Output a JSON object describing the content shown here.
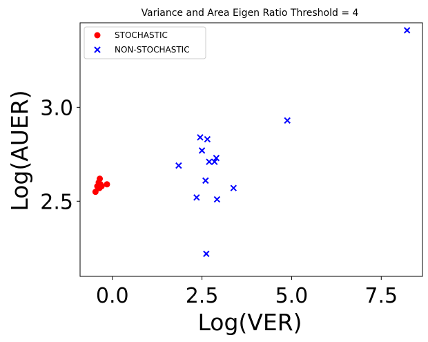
{
  "chart_data": {
    "type": "scatter",
    "title": "Variance and  Area Eigen Ratio Threshold = 4",
    "xlabel": "Log(VER)",
    "ylabel": "Log(AUER)",
    "xlim": [
      -0.9,
      8.65
    ],
    "ylim": [
      2.1,
      3.45
    ],
    "xticks": [
      0.0,
      2.5,
      5.0,
      7.5
    ],
    "xtick_labels": [
      "0.0",
      "2.5",
      "5.0",
      "7.5"
    ],
    "yticks": [
      2.5,
      3.0
    ],
    "ytick_labels": [
      "2.5",
      "3.0"
    ],
    "grid": false,
    "legend_position": "top-left",
    "series": [
      {
        "name": "STOCHASTIC",
        "marker": "circle",
        "color": "#ff0000",
        "points": [
          [
            -0.47,
            2.55
          ],
          [
            -0.42,
            2.58
          ],
          [
            -0.38,
            2.6
          ],
          [
            -0.36,
            2.57
          ],
          [
            -0.35,
            2.62
          ],
          [
            -0.33,
            2.59
          ],
          [
            -0.3,
            2.58
          ],
          [
            -0.15,
            2.59
          ]
        ]
      },
      {
        "name": "NON-STOCHASTIC",
        "marker": "x",
        "color": "#0000ff",
        "points": [
          [
            8.22,
            3.41
          ],
          [
            4.88,
            2.93
          ],
          [
            2.45,
            2.84
          ],
          [
            2.65,
            2.83
          ],
          [
            2.5,
            2.77
          ],
          [
            2.9,
            2.73
          ],
          [
            2.7,
            2.71
          ],
          [
            2.85,
            2.71
          ],
          [
            1.85,
            2.69
          ],
          [
            2.6,
            2.61
          ],
          [
            3.38,
            2.57
          ],
          [
            2.35,
            2.52
          ],
          [
            2.92,
            2.51
          ],
          [
            2.62,
            2.22
          ]
        ]
      }
    ]
  }
}
